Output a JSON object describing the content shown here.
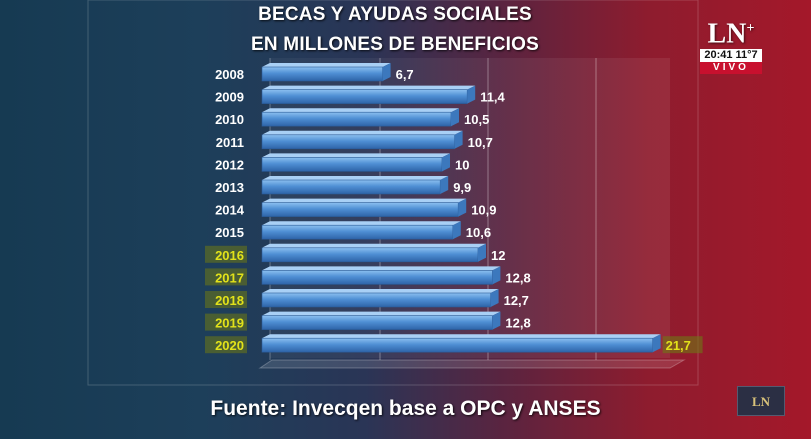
{
  "chart_data": {
    "type": "bar",
    "orientation": "horizontal",
    "title": "BECAS Y AYUDAS SOCIALES",
    "subtitle": "EN MILLONES DE BENEFICIOS",
    "categories": [
      "2008",
      "2009",
      "2010",
      "2011",
      "2012",
      "2013",
      "2014",
      "2015",
      "2016",
      "2017",
      "2018",
      "2019",
      "2020"
    ],
    "values": [
      6.7,
      11.4,
      10.5,
      10.7,
      10,
      9.9,
      10.9,
      10.6,
      12,
      12.8,
      12.7,
      12.8,
      21.7
    ],
    "value_labels": [
      "6,7",
      "11,4",
      "10,5",
      "10,7",
      "10",
      "9,9",
      "10,9",
      "10,6",
      "12",
      "12,8",
      "12,7",
      "12,8",
      "21,7"
    ],
    "highlighted_categories": [
      "2016",
      "2017",
      "2018",
      "2019",
      "2020"
    ],
    "highlighted_values": [
      "21,7"
    ],
    "xlim": [
      0,
      24
    ],
    "grid": true,
    "legend": "none",
    "bar_color": "#4f8fd4",
    "highlight_color": "#e2e21a",
    "xlabel": "",
    "ylabel": ""
  },
  "source": "Fuente: Invecqen base a OPC y ANSES",
  "broadcast": {
    "logo": "LN",
    "logo_plus": "+",
    "clock": "20:41 11°7",
    "live": "VIVO",
    "corner_logo": "LN"
  }
}
